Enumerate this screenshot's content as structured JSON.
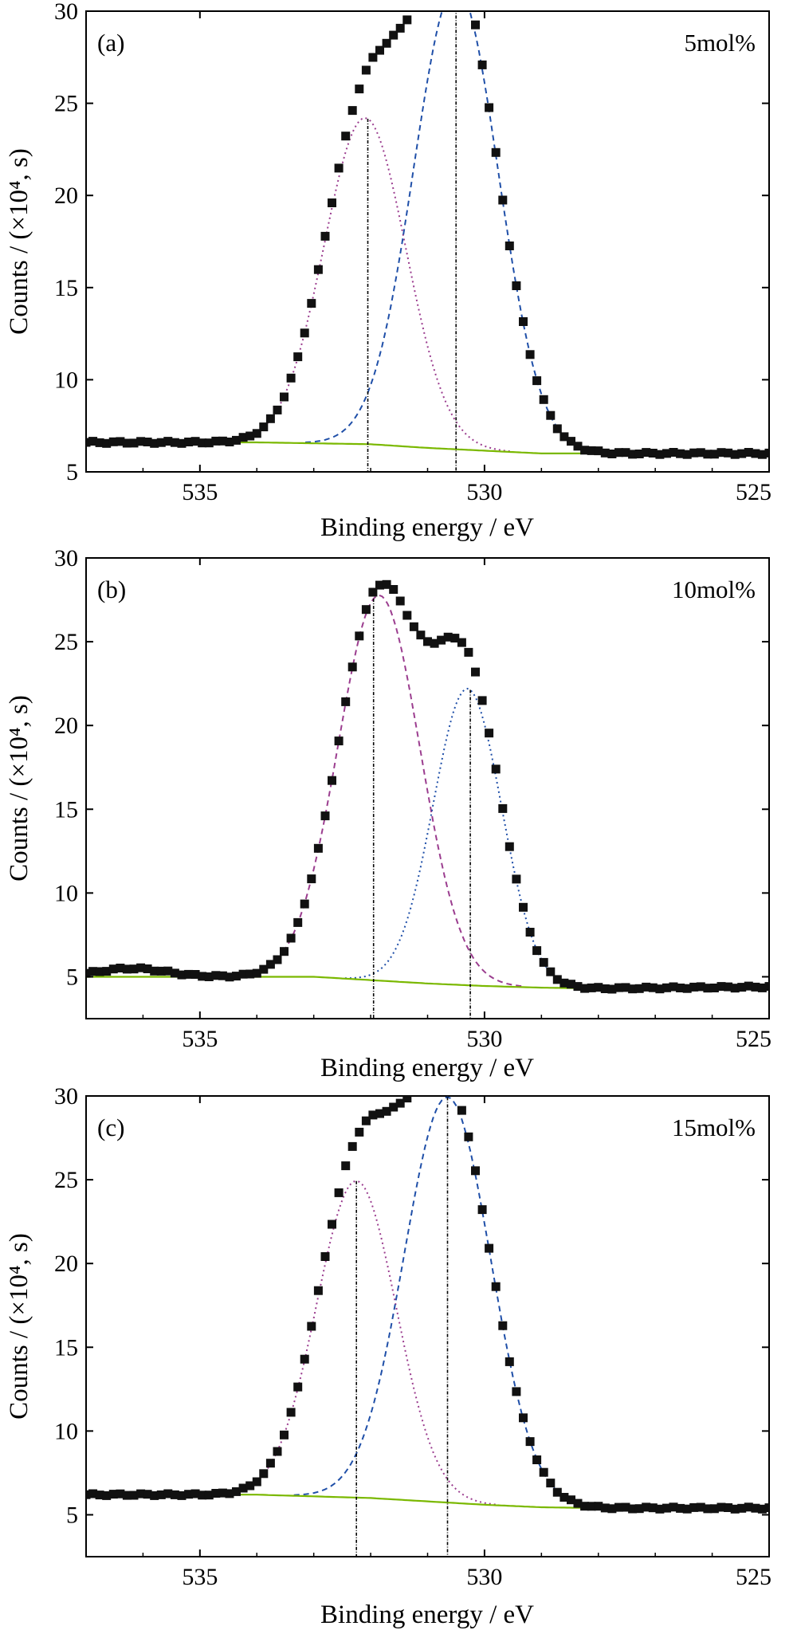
{
  "chart_data": [
    {
      "type": "scatter",
      "panel_label": "(a)",
      "annotation": "5mol%",
      "xlabel": "Binding energy / eV",
      "ylabel": "Counts / (×10⁴, s)",
      "xlim": [
        537,
        525
      ],
      "ylim": [
        5,
        30
      ],
      "x_reversed": true,
      "xticks": [
        535,
        530,
        525
      ],
      "yticks": [
        5,
        10,
        15,
        20,
        25,
        30
      ],
      "baseline": {
        "x": [
          537,
          534,
          532,
          531,
          530,
          529,
          528,
          525
        ],
        "y": [
          6.6,
          6.6,
          6.5,
          6.3,
          6.15,
          6.0,
          6.0,
          6.0
        ]
      },
      "components": [
        {
          "style": "dotted",
          "color": "#9b3d8f",
          "center": 532.1,
          "height": 17.7,
          "sigma": 0.72
        },
        {
          "style": "dashed",
          "color": "#1f4fa8",
          "center": 530.5,
          "height": 25.1,
          "sigma": 0.74
        }
      ],
      "fit_color": "#d42020",
      "background_color": "#7ab800",
      "measured": {
        "x_range": [
          537,
          525
        ],
        "step": 0.12,
        "jitter": 0.12
      },
      "peak_markers": [
        532.05,
        530.5
      ]
    },
    {
      "type": "scatter",
      "panel_label": "(b)",
      "annotation": "10mol%",
      "xlabel": "Binding energy / eV",
      "ylabel": "Counts / (×10⁴, s)",
      "xlim": [
        537,
        525
      ],
      "ylim": [
        2.5,
        30
      ],
      "x_reversed": true,
      "xticks": [
        535,
        530,
        525
      ],
      "yticks": [
        5,
        10,
        15,
        20,
        25,
        30
      ],
      "baseline": {
        "x": [
          537,
          533,
          531,
          530,
          529,
          528,
          525
        ],
        "y": [
          5.0,
          5.0,
          4.6,
          4.45,
          4.35,
          4.3,
          4.4
        ]
      },
      "components": [
        {
          "style": "dashed",
          "color": "#9b3d8f",
          "center": 531.85,
          "height": 23.0,
          "sigma": 0.72
        },
        {
          "style": "dotted",
          "color": "#1f4fa8",
          "center": 530.3,
          "height": 17.7,
          "sigma": 0.6
        }
      ],
      "fit_color": "#d42020",
      "background_color": "#7ab800",
      "measured": {
        "x_range": [
          537,
          525
        ],
        "step": 0.12,
        "jitter": 0.12,
        "bump": {
          "center": 536.2,
          "height": 0.5,
          "sigma": 0.6
        }
      },
      "peak_markers": [
        531.95,
        530.25
      ]
    },
    {
      "type": "scatter",
      "panel_label": "(c)",
      "annotation": "15mol%",
      "xlabel": "Binding energy / eV",
      "ylabel": "Counts / (×10⁴, s)",
      "xlim": [
        537,
        525
      ],
      "ylim": [
        2.5,
        30
      ],
      "x_reversed": true,
      "xticks": [
        535,
        530,
        525
      ],
      "yticks": [
        5,
        10,
        15,
        20,
        25,
        30
      ],
      "baseline": {
        "x": [
          537,
          534,
          532,
          531,
          530,
          529,
          528,
          525
        ],
        "y": [
          6.2,
          6.2,
          6.0,
          5.8,
          5.6,
          5.45,
          5.4,
          5.4
        ]
      },
      "components": [
        {
          "style": "dotted",
          "color": "#9b3d8f",
          "center": 532.25,
          "height": 18.9,
          "sigma": 0.7
        },
        {
          "style": "dashed",
          "color": "#1f4fa8",
          "center": 530.65,
          "height": 24.2,
          "sigma": 0.76
        }
      ],
      "fit_color": "#d42020",
      "background_color": "#7ab800",
      "measured": {
        "x_range": [
          537,
          525
        ],
        "step": 0.12,
        "jitter": 0.12
      },
      "peak_markers": [
        532.25,
        530.65
      ]
    }
  ]
}
